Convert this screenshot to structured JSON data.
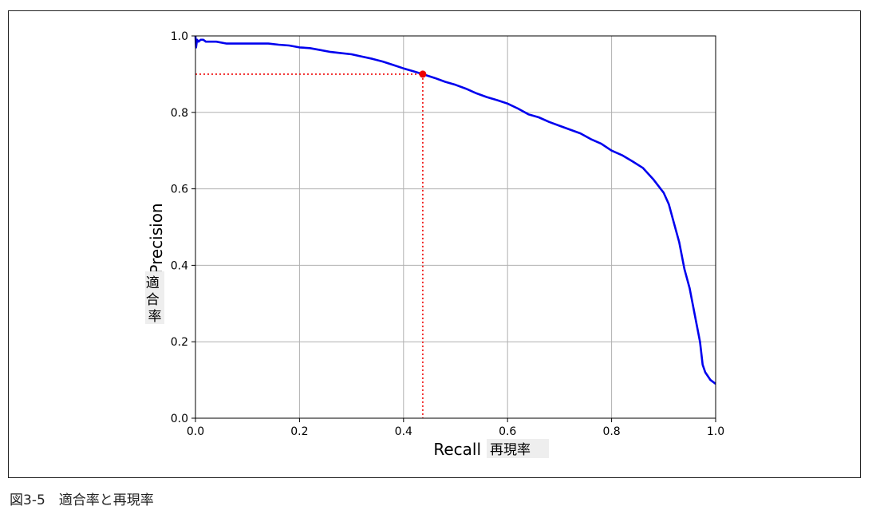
{
  "caption": "図3-5　適合率と再現率",
  "chart_data": {
    "type": "line",
    "title": "",
    "xlabel": "Recall",
    "xlabel_jp": "再現率",
    "ylabel": "Precision",
    "ylabel_jp": "適合率",
    "xlim": [
      0,
      1
    ],
    "ylim": [
      0,
      1
    ],
    "grid": true,
    "xticks": [
      "0.0",
      "0.2",
      "0.4",
      "0.6",
      "0.8",
      "1.0"
    ],
    "yticks": [
      "0.0",
      "0.2",
      "0.4",
      "0.6",
      "0.8",
      "1.0"
    ],
    "series": [
      {
        "color": "#0000ee",
        "x": [
          0.0,
          0.001,
          0.003,
          0.006,
          0.01,
          0.015,
          0.02,
          0.03,
          0.04,
          0.06,
          0.08,
          0.1,
          0.12,
          0.14,
          0.16,
          0.18,
          0.2,
          0.22,
          0.24,
          0.26,
          0.28,
          0.3,
          0.32,
          0.34,
          0.36,
          0.38,
          0.4,
          0.42,
          0.437,
          0.46,
          0.48,
          0.5,
          0.52,
          0.54,
          0.56,
          0.58,
          0.6,
          0.62,
          0.64,
          0.66,
          0.68,
          0.7,
          0.72,
          0.74,
          0.76,
          0.78,
          0.8,
          0.82,
          0.84,
          0.86,
          0.88,
          0.9,
          0.91,
          0.92,
          0.93,
          0.94,
          0.95,
          0.96,
          0.97,
          0.975,
          0.98,
          0.99,
          1.0
        ],
        "y": [
          1.0,
          0.97,
          0.99,
          0.985,
          0.99,
          0.99,
          0.985,
          0.985,
          0.985,
          0.98,
          0.98,
          0.98,
          0.98,
          0.98,
          0.977,
          0.975,
          0.97,
          0.968,
          0.963,
          0.958,
          0.955,
          0.952,
          0.946,
          0.94,
          0.933,
          0.924,
          0.915,
          0.907,
          0.9,
          0.89,
          0.88,
          0.872,
          0.862,
          0.85,
          0.84,
          0.832,
          0.823,
          0.81,
          0.795,
          0.787,
          0.775,
          0.765,
          0.755,
          0.745,
          0.73,
          0.718,
          0.7,
          0.688,
          0.672,
          0.655,
          0.625,
          0.59,
          0.56,
          0.51,
          0.46,
          0.39,
          0.34,
          0.27,
          0.2,
          0.14,
          0.12,
          0.1,
          0.09
        ]
      }
    ],
    "marker": {
      "x": 0.437,
      "y": 0.9,
      "color": "#ee0000",
      "guide_color": "#ee0000",
      "guide_style": "dotted"
    }
  }
}
